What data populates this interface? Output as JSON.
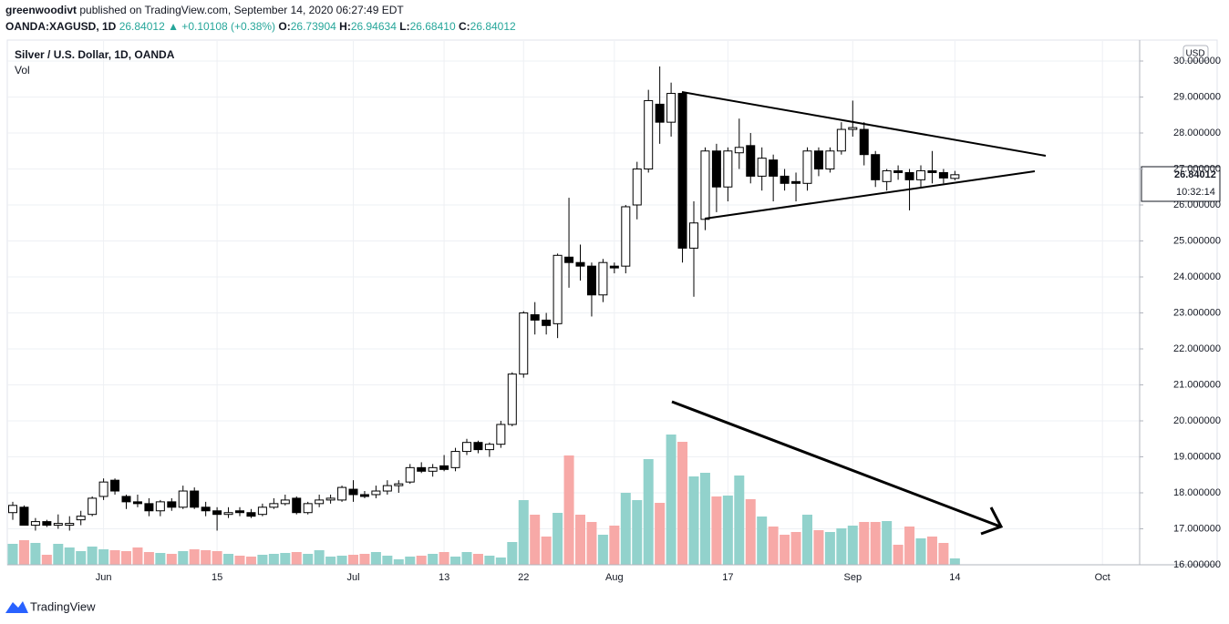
{
  "header": {
    "author": "greenwoodivt",
    "published": "published on TradingView.com, September 14, 2020 06:27:49 EDT",
    "symbol": "OANDA:XAGUSD, 1D",
    "last": "26.84012",
    "change": "▲ +0.10108 (+0.38%)",
    "ohlc": [
      {
        "label": "O:",
        "value": "26.73904"
      },
      {
        "label": "H:",
        "value": "26.94634"
      },
      {
        "label": "L:",
        "value": "26.68410"
      },
      {
        "label": "C:",
        "value": "26.84012"
      }
    ]
  },
  "chart_data": {
    "type": "candlestick",
    "title": "Silver / U.S. Dollar, 1D, OANDA",
    "volume_label": "Vol",
    "currency": "USD",
    "last_price_label": "26.84012",
    "countdown": "10:32:14",
    "brand": "TradingView",
    "categories": [
      null,
      null,
      null,
      null,
      null,
      null,
      null,
      null,
      "Jun",
      null,
      null,
      null,
      null,
      null,
      null,
      null,
      null,
      null,
      "15",
      null,
      null,
      null,
      null,
      null,
      null,
      null,
      null,
      null,
      null,
      null,
      "Jul",
      null,
      null,
      null,
      null,
      null,
      null,
      null,
      "13",
      null,
      null,
      null,
      null,
      null,
      null,
      "22",
      null,
      null,
      null,
      null,
      null,
      null,
      null,
      "Aug",
      null,
      null,
      null,
      null,
      null,
      null,
      null,
      null,
      null,
      "17",
      null,
      null,
      null,
      null,
      null,
      null,
      null,
      null,
      null,
      null,
      "Sep",
      null,
      null,
      null,
      null,
      null,
      null,
      null,
      null,
      "14",
      null,
      null,
      null,
      null,
      null,
      null,
      null,
      null,
      null,
      null,
      null,
      null,
      "Oct",
      null,
      null
    ],
    "values": [
      [
        17.45,
        17.75,
        17.25,
        17.65
      ],
      [
        17.6,
        17.65,
        17.1,
        17.1
      ],
      [
        17.1,
        17.3,
        16.95,
        17.2
      ],
      [
        17.2,
        17.25,
        17.05,
        17.1
      ],
      [
        17.1,
        17.4,
        17.0,
        17.15
      ],
      [
        17.1,
        17.35,
        16.95,
        17.15
      ],
      [
        17.25,
        17.5,
        17.1,
        17.35
      ],
      [
        17.4,
        17.9,
        17.35,
        17.85
      ],
      [
        17.9,
        18.4,
        17.8,
        18.3
      ],
      [
        18.35,
        18.4,
        17.95,
        18.05
      ],
      [
        17.9,
        17.95,
        17.55,
        17.75
      ],
      [
        17.75,
        17.95,
        17.6,
        17.7
      ],
      [
        17.7,
        17.85,
        17.35,
        17.5
      ],
      [
        17.5,
        17.8,
        17.35,
        17.75
      ],
      [
        17.75,
        17.85,
        17.5,
        17.6
      ],
      [
        17.6,
        18.2,
        17.55,
        18.05
      ],
      [
        18.05,
        18.15,
        17.55,
        17.6
      ],
      [
        17.6,
        17.75,
        17.35,
        17.5
      ],
      [
        17.5,
        17.6,
        16.95,
        17.4
      ],
      [
        17.4,
        17.6,
        17.3,
        17.45
      ],
      [
        17.5,
        17.6,
        17.35,
        17.45
      ],
      [
        17.45,
        17.55,
        17.3,
        17.35
      ],
      [
        17.4,
        17.7,
        17.35,
        17.6
      ],
      [
        17.6,
        17.85,
        17.55,
        17.7
      ],
      [
        17.7,
        17.95,
        17.65,
        17.8
      ],
      [
        17.85,
        17.9,
        17.4,
        17.45
      ],
      [
        17.45,
        17.75,
        17.4,
        17.7
      ],
      [
        17.7,
        17.95,
        17.6,
        17.8
      ],
      [
        17.8,
        17.95,
        17.7,
        17.85
      ],
      [
        17.8,
        18.2,
        17.75,
        18.15
      ],
      [
        18.1,
        18.35,
        17.75,
        17.95
      ],
      [
        17.95,
        18.05,
        17.85,
        17.9
      ],
      [
        17.95,
        18.2,
        17.85,
        18.05
      ],
      [
        18.05,
        18.35,
        17.95,
        18.2
      ],
      [
        18.2,
        18.35,
        18.0,
        18.25
      ],
      [
        18.3,
        18.8,
        18.25,
        18.7
      ],
      [
        18.7,
        18.85,
        18.55,
        18.6
      ],
      [
        18.6,
        18.8,
        18.45,
        18.7
      ],
      [
        18.75,
        19.05,
        18.6,
        18.65
      ],
      [
        18.7,
        19.25,
        18.6,
        19.15
      ],
      [
        19.15,
        19.5,
        19.05,
        19.4
      ],
      [
        19.4,
        19.45,
        19.1,
        19.2
      ],
      [
        19.2,
        19.4,
        19.0,
        19.35
      ],
      [
        19.35,
        20.0,
        19.25,
        19.9
      ],
      [
        19.9,
        21.35,
        19.85,
        21.3
      ],
      [
        21.3,
        23.05,
        21.2,
        23.0
      ],
      [
        22.95,
        23.3,
        22.4,
        22.8
      ],
      [
        22.8,
        23.0,
        22.4,
        22.65
      ],
      [
        22.7,
        24.65,
        22.3,
        24.6
      ],
      [
        24.55,
        26.2,
        23.7,
        24.4
      ],
      [
        24.4,
        24.9,
        23.9,
        24.3
      ],
      [
        24.3,
        24.4,
        22.9,
        23.5
      ],
      [
        23.5,
        24.5,
        23.3,
        24.4
      ],
      [
        24.3,
        24.4,
        24.1,
        24.25
      ],
      [
        24.3,
        26.0,
        24.1,
        25.95
      ],
      [
        26.0,
        27.2,
        25.6,
        27.0
      ],
      [
        27.0,
        29.2,
        26.9,
        28.9
      ],
      [
        28.8,
        29.85,
        27.7,
        28.3
      ],
      [
        28.3,
        29.4,
        27.9,
        29.1
      ],
      [
        29.1,
        29.15,
        24.4,
        24.8
      ],
      [
        24.8,
        26.1,
        23.45,
        25.5
      ],
      [
        25.6,
        27.6,
        25.3,
        27.5
      ],
      [
        27.5,
        27.7,
        25.8,
        26.5
      ],
      [
        26.5,
        27.6,
        26.1,
        27.5
      ],
      [
        27.45,
        28.4,
        27.0,
        27.6
      ],
      [
        27.65,
        28.0,
        26.6,
        26.8
      ],
      [
        26.8,
        27.6,
        26.4,
        27.3
      ],
      [
        27.25,
        27.4,
        26.1,
        26.8
      ],
      [
        26.8,
        27.0,
        26.4,
        26.6
      ],
      [
        26.65,
        26.9,
        26.1,
        26.6
      ],
      [
        26.6,
        27.6,
        26.4,
        27.5
      ],
      [
        27.5,
        27.6,
        26.8,
        27.0
      ],
      [
        27.0,
        27.6,
        26.9,
        27.5
      ],
      [
        27.5,
        28.3,
        27.4,
        28.1
      ],
      [
        28.1,
        28.9,
        27.9,
        28.15
      ],
      [
        28.1,
        28.3,
        27.1,
        27.4
      ],
      [
        27.4,
        27.5,
        26.5,
        26.7
      ],
      [
        26.65,
        27.0,
        26.4,
        26.95
      ],
      [
        26.95,
        27.1,
        26.7,
        26.9
      ],
      [
        26.9,
        27.0,
        25.85,
        26.7
      ],
      [
        26.7,
        27.1,
        26.5,
        26.95
      ],
      [
        26.95,
        27.5,
        26.6,
        26.9
      ],
      [
        26.9,
        27.0,
        26.6,
        26.75
      ],
      [
        26.73904,
        26.94634,
        26.6841,
        26.84012
      ],
      null,
      null,
      null,
      null,
      null,
      null,
      null,
      null,
      null,
      null,
      null,
      null,
      null,
      null,
      null
    ],
    "volume": [
      23,
      27,
      24,
      11,
      23,
      19,
      15,
      20,
      17,
      16,
      15,
      19,
      14,
      13,
      12,
      15,
      17,
      16,
      15,
      12,
      10,
      9,
      11,
      12,
      13,
      14,
      12,
      16,
      9,
      10,
      11,
      12,
      14,
      10,
      6,
      9,
      10,
      12,
      14,
      9,
      14,
      12,
      10,
      8,
      25,
      71,
      55,
      31,
      57,
      120,
      55,
      47,
      33,
      43,
      79,
      71,
      116,
      68,
      143,
      135,
      97,
      101,
      75,
      76,
      98,
      72,
      53,
      42,
      33,
      36,
      55,
      38,
      36,
      40,
      43,
      47,
      47,
      48,
      22,
      42,
      29,
      31,
      24,
      7,
      null,
      null,
      null,
      null,
      null,
      null,
      null,
      null,
      null,
      null,
      null,
      null,
      null,
      null,
      null
    ],
    "volume_lim": [
      0,
      575
    ],
    "ylim": [
      16,
      30.557
    ],
    "yticks": [
      {
        "value": 16,
        "label": "16.000000"
      },
      {
        "value": 17,
        "label": "17.000000"
      },
      {
        "value": 18,
        "label": "18.000000"
      },
      {
        "value": 19,
        "label": "19.000000"
      },
      {
        "value": 20,
        "label": "20.000000"
      },
      {
        "value": 21,
        "label": "21.000000"
      },
      {
        "value": 22,
        "label": "22.000000"
      },
      {
        "value": 23,
        "label": "23.000000"
      },
      {
        "value": 24,
        "label": "24.000000"
      },
      {
        "value": 25,
        "label": "25.000000"
      },
      {
        "value": 26,
        "label": "26.000000"
      },
      {
        "value": 27,
        "label": "27.000000"
      },
      {
        "value": 28,
        "label": "28.000000"
      },
      {
        "value": 29,
        "label": "29.000000"
      },
      {
        "value": 30,
        "label": "30.000000"
      }
    ],
    "grid": true,
    "up_color": "#ffffff",
    "down_color": "#000000",
    "wick_color": "#000000",
    "up_volume_color": "#92d2cc",
    "down_volume_color": "#f7a9a7"
  }
}
